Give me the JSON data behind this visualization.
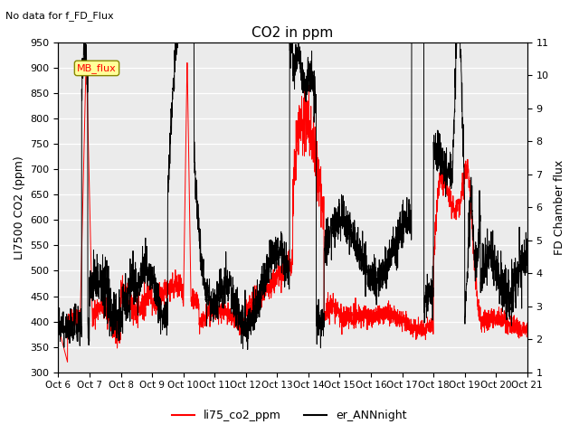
{
  "title": "CO2 in ppm",
  "top_left_text": "No data for f_FD_Flux",
  "ylabel_left": "LI7500 CO2 (ppm)",
  "ylabel_right": "FD Chamber flux",
  "ylim_left": [
    300,
    950
  ],
  "ylim_right": [
    1.0,
    11.0
  ],
  "yticks_left": [
    300,
    350,
    400,
    450,
    500,
    550,
    600,
    650,
    700,
    750,
    800,
    850,
    900,
    950
  ],
  "yticks_right": [
    1.0,
    2.0,
    3.0,
    4.0,
    5.0,
    6.0,
    7.0,
    8.0,
    9.0,
    10.0,
    11.0
  ],
  "xlim": [
    0,
    15
  ],
  "xtick_labels": [
    "Oct 6",
    "Oct 7",
    "Oct 8",
    "Oct 9",
    "Oct 10",
    "Oct 11",
    "Oct 12",
    "Oct 13",
    "Oct 14",
    "Oct 15",
    "Oct 16",
    "Oct 17",
    "Oct 18",
    "Oct 19",
    "Oct 20",
    "Oct 21"
  ],
  "legend_entries": [
    "li75_co2_ppm",
    "er_ANNnight"
  ],
  "line1_color": "red",
  "line2_color": "black",
  "mb_flux_box_facecolor": "#ffff99",
  "mb_flux_text_color": "red",
  "mb_flux_edge_color": "#888800",
  "background_color": "#ebebeb",
  "grid_color": "white",
  "title_fontsize": 11,
  "axis_fontsize": 9,
  "tick_fontsize": 8
}
